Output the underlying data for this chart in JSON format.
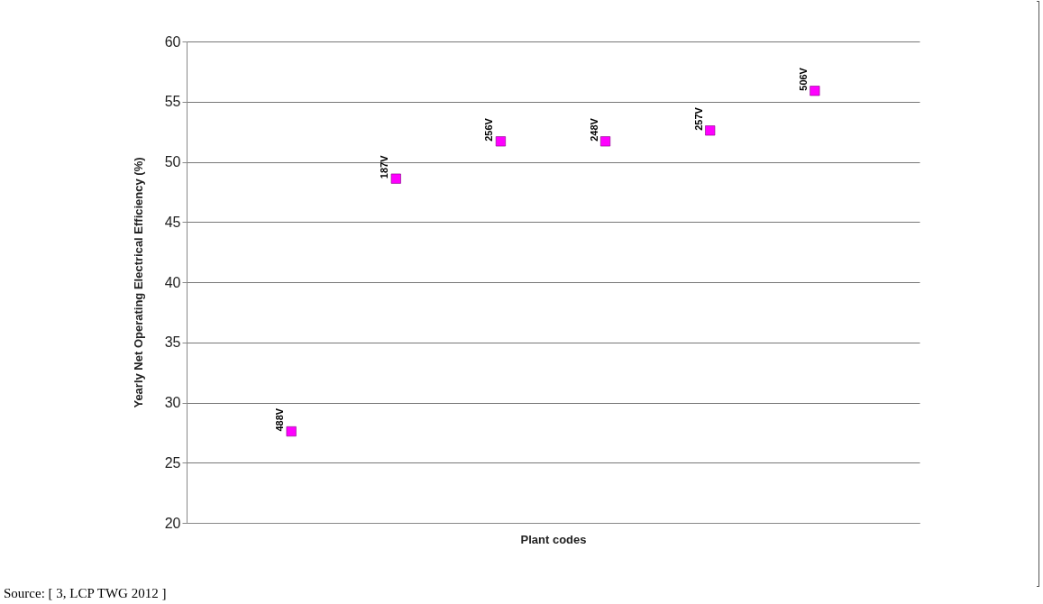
{
  "chart_data": {
    "type": "scatter",
    "xlabel": "Plant codes",
    "ylabel": "Yearly Net Operating Electrical Efficiency (%)",
    "categories": [
      "488V",
      "187V",
      "256V",
      "248V",
      "257V",
      "506V"
    ],
    "series": [
      {
        "color": "#ff00ff",
        "values": [
          27.6,
          48.6,
          51.7,
          51.7,
          52.6,
          55.9
        ]
      }
    ],
    "ylim": [
      20,
      60
    ],
    "yticks": [
      20,
      25,
      30,
      35,
      40,
      45,
      50,
      55,
      60
    ],
    "grid": "y",
    "marker": "square",
    "tick_labels": "y",
    "annotations": [
      "Source: [ 3, LCP TWG 2012 ]"
    ]
  }
}
